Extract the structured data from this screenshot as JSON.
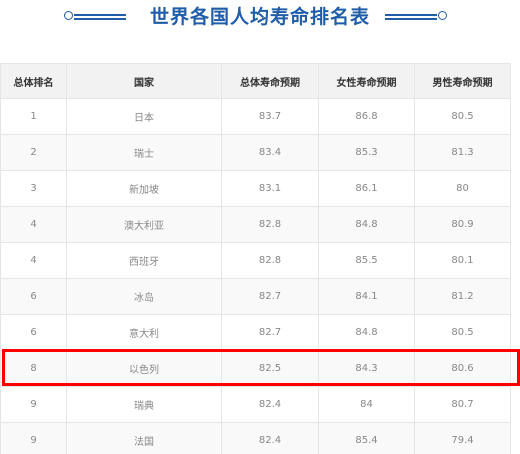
{
  "title": "世界各国人均寿命排名表",
  "table": {
    "headers": [
      "总体排名",
      "国家",
      "总体寿命预期",
      "女性寿命预期",
      "男性寿命预期"
    ],
    "rows": [
      [
        "1",
        "日本",
        "83.7",
        "86.8",
        "80.5"
      ],
      [
        "2",
        "瑞士",
        "83.4",
        "85.3",
        "81.3"
      ],
      [
        "3",
        "新加坡",
        "83.1",
        "86.1",
        "80"
      ],
      [
        "4",
        "澳大利亚",
        "82.8",
        "84.8",
        "80.9"
      ],
      [
        "4",
        "西班牙",
        "82.8",
        "85.5",
        "80.1"
      ],
      [
        "6",
        "冰岛",
        "82.7",
        "84.1",
        "81.2"
      ],
      [
        "6",
        "意大利",
        "82.7",
        "84.8",
        "80.5"
      ],
      [
        "8",
        "以色列",
        "82.5",
        "84.3",
        "80.6"
      ],
      [
        "9",
        "瑞典",
        "82.4",
        "84",
        "80.7"
      ],
      [
        "9",
        "法国",
        "82.4",
        "85.4",
        "79.4"
      ]
    ],
    "highlighted_row": 7
  },
  "colors": {
    "title": "#1f5da8",
    "highlight": "#ff0000",
    "header_bg": "#f2f2f2"
  }
}
